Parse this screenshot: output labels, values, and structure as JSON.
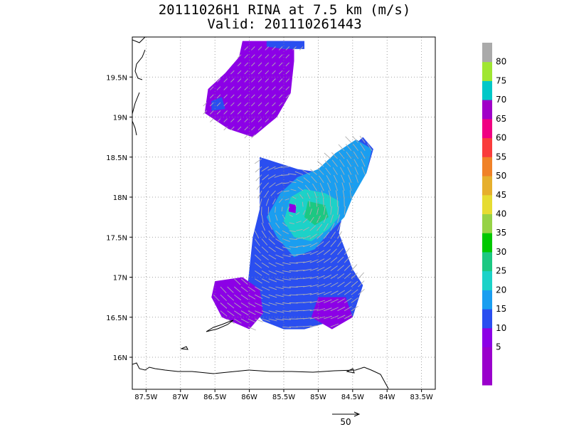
{
  "title": {
    "line1": "20111026H1 RINA at 7.5 km (m/s)",
    "line2": "Valid: 201110261443"
  },
  "chart_data": {
    "type": "heatmap",
    "xlabel": "",
    "ylabel": "",
    "xlim": [
      -87.7,
      -83.3
    ],
    "ylim": [
      15.6,
      20.0
    ],
    "x_ticks": [
      {
        "value": -87.5,
        "label": "87.5W"
      },
      {
        "value": -87.0,
        "label": "87W"
      },
      {
        "value": -86.5,
        "label": "86.5W"
      },
      {
        "value": -86.0,
        "label": "86W"
      },
      {
        "value": -85.5,
        "label": "85.5W"
      },
      {
        "value": -85.0,
        "label": "85W"
      },
      {
        "value": -84.5,
        "label": "84.5W"
      },
      {
        "value": -84.0,
        "label": "84W"
      },
      {
        "value": -83.5,
        "label": "83.5W"
      }
    ],
    "y_ticks": [
      {
        "value": 16.0,
        "label": "16N"
      },
      {
        "value": 16.5,
        "label": "16.5N"
      },
      {
        "value": 17.0,
        "label": "17N"
      },
      {
        "value": 17.5,
        "label": "17.5N"
      },
      {
        "value": 18.0,
        "label": "18N"
      },
      {
        "value": 18.5,
        "label": "18.5N"
      },
      {
        "value": 19.0,
        "label": "19N"
      },
      {
        "value": 19.5,
        "label": "19.5N"
      }
    ],
    "grid": true,
    "colorbar": {
      "bins": [
        {
          "label": "",
          "color": "#9a00cc"
        },
        {
          "label": "5",
          "color": "#9a00cc"
        },
        {
          "label": "10",
          "color": "#8c00e6"
        },
        {
          "label": "15",
          "color": "#2a4ef0"
        },
        {
          "label": "20",
          "color": "#1a9ef0"
        },
        {
          "label": "25",
          "color": "#1cd2c8"
        },
        {
          "label": "30",
          "color": "#1cc882"
        },
        {
          "label": "35",
          "color": "#00c800"
        },
        {
          "label": "40",
          "color": "#96d246"
        },
        {
          "label": "45",
          "color": "#e6dc32"
        },
        {
          "label": "50",
          "color": "#e6af2d"
        },
        {
          "label": "55",
          "color": "#f08228"
        },
        {
          "label": "60",
          "color": "#fa3c3c"
        },
        {
          "label": "65",
          "color": "#f00082"
        },
        {
          "label": "70",
          "color": "#a000c8"
        },
        {
          "label": "75",
          "color": "#00c8c8"
        },
        {
          "label": "80",
          "color": "#a0e632"
        },
        {
          "label": "",
          "color": "#aaaaaa"
        }
      ]
    },
    "wind_regions": [
      {
        "name": "northern patch",
        "level": 10,
        "color": "#8c00e6",
        "polygon": [
          [
            -86.1,
            19.95
          ],
          [
            -85.35,
            19.95
          ],
          [
            -85.35,
            19.7
          ],
          [
            -85.4,
            19.3
          ],
          [
            -85.6,
            19.0
          ],
          [
            -85.95,
            18.75
          ],
          [
            -86.3,
            18.85
          ],
          [
            -86.65,
            19.05
          ],
          [
            -86.6,
            19.35
          ],
          [
            -86.35,
            19.55
          ],
          [
            -86.15,
            19.75
          ]
        ]
      },
      {
        "name": "northern edge 15",
        "level": 15,
        "color": "#2a4ef0",
        "polygon": [
          [
            -85.75,
            19.95
          ],
          [
            -85.2,
            19.95
          ],
          [
            -85.2,
            19.85
          ],
          [
            -85.5,
            19.85
          ],
          [
            -85.75,
            19.88
          ]
        ]
      },
      {
        "name": "northern west 15",
        "level": 15,
        "color": "#2a4ef0",
        "polygon": [
          [
            -86.55,
            19.2
          ],
          [
            -86.4,
            19.25
          ],
          [
            -86.35,
            19.1
          ],
          [
            -86.55,
            19.08
          ]
        ]
      },
      {
        "name": "storm 15",
        "level": 15,
        "color": "#2a4ef0",
        "polygon": [
          [
            -85.85,
            18.5
          ],
          [
            -85.3,
            18.35
          ],
          [
            -84.9,
            18.3
          ],
          [
            -84.6,
            18.55
          ],
          [
            -84.35,
            18.75
          ],
          [
            -84.2,
            18.6
          ],
          [
            -84.3,
            18.3
          ],
          [
            -84.6,
            18.0
          ],
          [
            -84.7,
            17.55
          ],
          [
            -84.5,
            17.1
          ],
          [
            -84.35,
            16.9
          ],
          [
            -84.5,
            16.5
          ],
          [
            -84.8,
            16.45
          ],
          [
            -85.2,
            16.35
          ],
          [
            -85.5,
            16.35
          ],
          [
            -85.8,
            16.45
          ],
          [
            -86.05,
            16.7
          ],
          [
            -86.0,
            17.1
          ],
          [
            -85.95,
            17.5
          ],
          [
            -85.85,
            17.85
          ],
          [
            -85.85,
            18.2
          ]
        ]
      },
      {
        "name": "storm 20",
        "level": 20,
        "color": "#1a9ef0",
        "polygon": [
          [
            -85.55,
            18.05
          ],
          [
            -85.3,
            18.25
          ],
          [
            -85.0,
            18.35
          ],
          [
            -84.75,
            18.55
          ],
          [
            -84.45,
            18.72
          ],
          [
            -84.22,
            18.6
          ],
          [
            -84.3,
            18.3
          ],
          [
            -84.5,
            18.0
          ],
          [
            -84.62,
            17.75
          ],
          [
            -84.85,
            17.55
          ],
          [
            -85.05,
            17.35
          ],
          [
            -85.35,
            17.25
          ],
          [
            -85.6,
            17.5
          ],
          [
            -85.75,
            17.75
          ]
        ]
      },
      {
        "name": "storm 25",
        "level": 25,
        "color": "#1cd2c8",
        "polygon": [
          [
            -85.4,
            18.0
          ],
          [
            -85.2,
            18.1
          ],
          [
            -84.9,
            18.05
          ],
          [
            -84.7,
            17.95
          ],
          [
            -84.7,
            17.75
          ],
          [
            -84.85,
            17.6
          ],
          [
            -85.1,
            17.45
          ],
          [
            -85.35,
            17.5
          ],
          [
            -85.5,
            17.7
          ]
        ]
      },
      {
        "name": "storm 30",
        "level": 30,
        "color": "#1cc882",
        "polygon": [
          [
            -85.15,
            17.95
          ],
          [
            -84.9,
            17.9
          ],
          [
            -84.85,
            17.75
          ],
          [
            -85.05,
            17.65
          ],
          [
            -85.2,
            17.75
          ]
        ]
      },
      {
        "name": "eye",
        "level": 10,
        "color": "#8c00e6",
        "polygon": [
          [
            -85.42,
            17.92
          ],
          [
            -85.32,
            17.9
          ],
          [
            -85.33,
            17.8
          ],
          [
            -85.43,
            17.82
          ]
        ]
      },
      {
        "name": "southwest 10",
        "level": 10,
        "color": "#8c00e6",
        "polygon": [
          [
            -86.5,
            16.95
          ],
          [
            -86.1,
            17.0
          ],
          [
            -85.85,
            16.85
          ],
          [
            -85.8,
            16.55
          ],
          [
            -86.0,
            16.35
          ],
          [
            -86.4,
            16.5
          ],
          [
            -86.55,
            16.75
          ]
        ]
      },
      {
        "name": "south 10",
        "level": 10,
        "color": "#8c00e6",
        "polygon": [
          [
            -85.0,
            16.75
          ],
          [
            -84.6,
            16.75
          ],
          [
            -84.5,
            16.5
          ],
          [
            -84.8,
            16.35
          ],
          [
            -85.1,
            16.5
          ]
        ]
      }
    ],
    "storm_center": {
      "lon": -85.38,
      "lat": 17.86
    },
    "vector_reference": {
      "label": "50"
    }
  }
}
